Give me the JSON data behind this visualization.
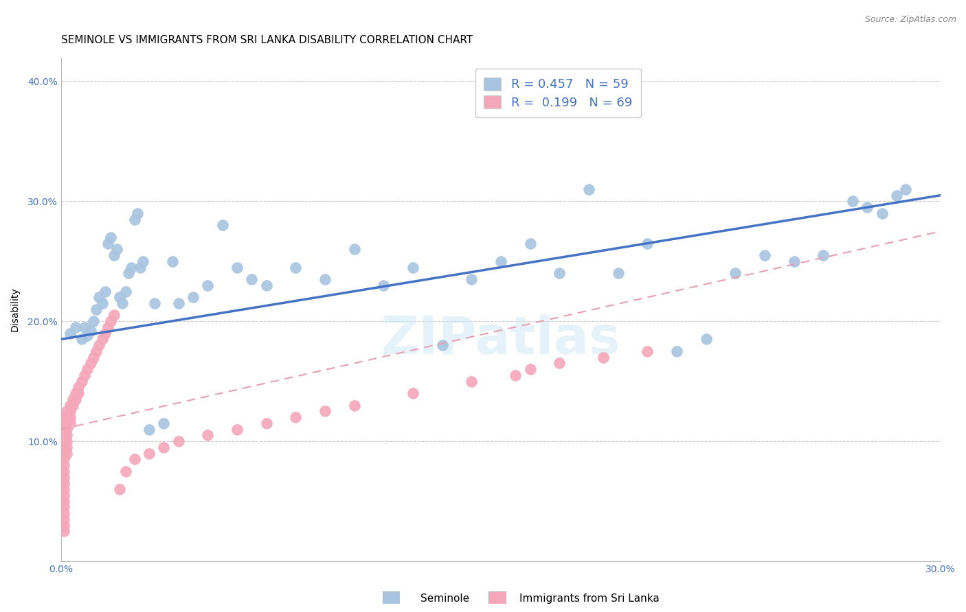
{
  "title": "SEMINOLE VS IMMIGRANTS FROM SRI LANKA DISABILITY CORRELATION CHART",
  "source": "Source: ZipAtlas.com",
  "ylabel": "Disability",
  "watermark": "ZIPatlas",
  "xlim": [
    0.0,
    0.3
  ],
  "ylim": [
    0.0,
    0.42
  ],
  "xticks": [
    0.0,
    0.05,
    0.1,
    0.15,
    0.2,
    0.25,
    0.3
  ],
  "yticks": [
    0.0,
    0.1,
    0.2,
    0.3,
    0.4
  ],
  "ytick_labels": [
    "",
    "10.0%",
    "20.0%",
    "30.0%",
    "40.0%"
  ],
  "xtick_labels": [
    "0.0%",
    "",
    "",
    "",
    "",
    "",
    "30.0%"
  ],
  "seminole_color": "#a8c4e0",
  "srilanka_color": "#f4a7b9",
  "seminole_line_color": "#4472c4",
  "srilanka_line_color": "#e8a0b0",
  "blue_text_color": "#4472c4",
  "seminole_R": 0.457,
  "seminole_N": 59,
  "srilanka_R": 0.199,
  "srilanka_N": 69,
  "title_fontsize": 11,
  "axis_label_fontsize": 10,
  "tick_fontsize": 10,
  "legend_fontsize": 13,
  "seminole_x": [
    0.003,
    0.005,
    0.007,
    0.008,
    0.009,
    0.01,
    0.011,
    0.012,
    0.013,
    0.014,
    0.015,
    0.016,
    0.017,
    0.018,
    0.019,
    0.02,
    0.021,
    0.022,
    0.023,
    0.024,
    0.025,
    0.026,
    0.027,
    0.028,
    0.03,
    0.032,
    0.035,
    0.038,
    0.04,
    0.045,
    0.05,
    0.055,
    0.06,
    0.065,
    0.07,
    0.08,
    0.09,
    0.1,
    0.11,
    0.12,
    0.13,
    0.14,
    0.15,
    0.16,
    0.17,
    0.18,
    0.19,
    0.2,
    0.21,
    0.22,
    0.23,
    0.24,
    0.25,
    0.26,
    0.27,
    0.275,
    0.28,
    0.285,
    0.288
  ],
  "seminole_y": [
    0.19,
    0.195,
    0.185,
    0.195,
    0.188,
    0.192,
    0.2,
    0.21,
    0.22,
    0.215,
    0.225,
    0.265,
    0.27,
    0.255,
    0.26,
    0.22,
    0.215,
    0.225,
    0.24,
    0.245,
    0.285,
    0.29,
    0.245,
    0.25,
    0.11,
    0.215,
    0.115,
    0.25,
    0.215,
    0.22,
    0.23,
    0.28,
    0.245,
    0.235,
    0.23,
    0.245,
    0.235,
    0.26,
    0.23,
    0.245,
    0.18,
    0.235,
    0.25,
    0.265,
    0.24,
    0.31,
    0.24,
    0.265,
    0.175,
    0.185,
    0.24,
    0.255,
    0.25,
    0.255,
    0.3,
    0.295,
    0.29,
    0.305,
    0.31
  ],
  "srilanka_x": [
    0.001,
    0.001,
    0.001,
    0.001,
    0.001,
    0.001,
    0.001,
    0.001,
    0.001,
    0.001,
    0.001,
    0.001,
    0.001,
    0.001,
    0.001,
    0.001,
    0.001,
    0.001,
    0.001,
    0.001,
    0.002,
    0.002,
    0.002,
    0.002,
    0.002,
    0.002,
    0.002,
    0.002,
    0.003,
    0.003,
    0.003,
    0.003,
    0.004,
    0.004,
    0.005,
    0.005,
    0.006,
    0.006,
    0.007,
    0.008,
    0.009,
    0.01,
    0.011,
    0.012,
    0.013,
    0.014,
    0.015,
    0.016,
    0.017,
    0.018,
    0.02,
    0.022,
    0.025,
    0.03,
    0.035,
    0.04,
    0.05,
    0.06,
    0.07,
    0.08,
    0.09,
    0.1,
    0.12,
    0.14,
    0.155,
    0.16,
    0.17,
    0.185,
    0.2
  ],
  "srilanka_y": [
    0.11,
    0.105,
    0.1,
    0.095,
    0.09,
    0.085,
    0.08,
    0.075,
    0.07,
    0.065,
    0.06,
    0.055,
    0.05,
    0.045,
    0.04,
    0.035,
    0.03,
    0.025,
    0.12,
    0.115,
    0.125,
    0.12,
    0.115,
    0.11,
    0.105,
    0.1,
    0.095,
    0.09,
    0.13,
    0.125,
    0.12,
    0.115,
    0.135,
    0.13,
    0.14,
    0.135,
    0.145,
    0.14,
    0.15,
    0.155,
    0.16,
    0.165,
    0.17,
    0.175,
    0.18,
    0.185,
    0.19,
    0.195,
    0.2,
    0.205,
    0.06,
    0.075,
    0.085,
    0.09,
    0.095,
    0.1,
    0.105,
    0.11,
    0.115,
    0.12,
    0.125,
    0.13,
    0.14,
    0.15,
    0.155,
    0.16,
    0.165,
    0.17,
    0.175
  ]
}
